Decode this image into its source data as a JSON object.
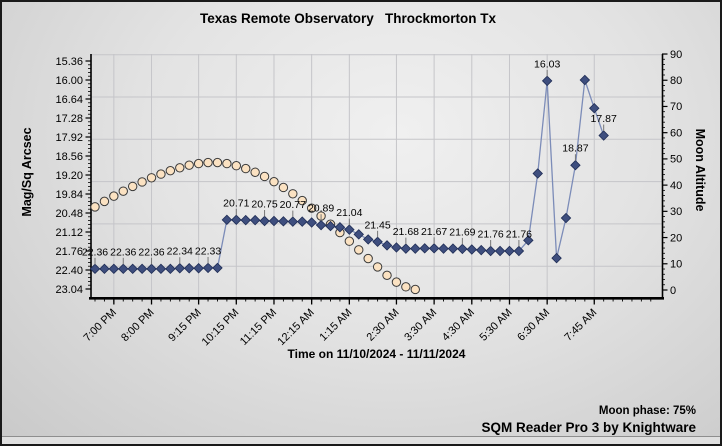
{
  "footer": {
    "moon_phase_label": "Moon phase: 75%",
    "app_credit": "SQM Reader Pro 3 by Knightware"
  },
  "chart_data": {
    "type": "line",
    "title": "Texas Remote Observatory   Throckmorton Tx",
    "x_axis": {
      "label": "Time on 11/10/2024 - 11/11/2024",
      "tick_labels": [
        "7:00 PM",
        "8:00 PM",
        "9:15 PM",
        "10:15 PM",
        "11:15 PM",
        "12:15 AM",
        "1:15 AM",
        "2:30 AM",
        "3:30 AM",
        "4:30 AM",
        "5:30 AM",
        "6:30 AM",
        "7:45 AM"
      ],
      "tick_indices": [
        2,
        6,
        11,
        15,
        19,
        23,
        27,
        32,
        36,
        40,
        44,
        48,
        53
      ]
    },
    "y_axis_left": {
      "label": "Mag/Sq Arcsec",
      "inverted": true,
      "range": [
        15.36,
        23.04
      ],
      "tick_labels": [
        "15.36",
        "16.00",
        "16.64",
        "17.28",
        "17.92",
        "18.56",
        "19.20",
        "19.84",
        "20.48",
        "21.12",
        "21.76",
        "22.40",
        "23.04"
      ]
    },
    "y_axis_right": {
      "label": "Moon Altitude",
      "range": [
        0,
        90
      ],
      "tick_labels": [
        "90",
        "80",
        "70",
        "60",
        "50",
        "40",
        "30",
        "20",
        "10",
        "0"
      ]
    },
    "series": [
      {
        "name": "SQM reading (Mag/Sq Arcsec)",
        "axis": "left",
        "marker": "diamond",
        "marker_color": "#3e4e7e",
        "marker_outline": "#1f2d55",
        "line_color": "#7c8cb8",
        "values": [
          22.36,
          22.36,
          22.36,
          22.36,
          22.36,
          22.36,
          22.36,
          22.36,
          22.36,
          22.34,
          22.34,
          22.34,
          22.33,
          22.33,
          20.71,
          20.71,
          20.72,
          20.72,
          20.75,
          20.75,
          20.76,
          20.77,
          20.77,
          20.8,
          20.89,
          20.92,
          20.96,
          21.04,
          21.2,
          21.37,
          21.45,
          21.57,
          21.64,
          21.68,
          21.68,
          21.67,
          21.67,
          21.68,
          21.68,
          21.69,
          21.71,
          21.73,
          21.76,
          21.76,
          21.76,
          21.76,
          21.4,
          19.15,
          16.03,
          22.0,
          20.65,
          18.87,
          16.0,
          16.95,
          17.87
        ]
      },
      {
        "name": "Moon altitude (degrees)",
        "axis": "right",
        "marker": "circle",
        "marker_color": "#fbe2c2",
        "marker_outline": "#3a3a3a",
        "line_color": "none",
        "values": [
          31.7,
          33.8,
          35.8,
          37.7,
          39.5,
          41.2,
          42.8,
          44.2,
          45.5,
          46.6,
          47.6,
          48.2,
          48.6,
          48.6,
          48.2,
          47.4,
          46.3,
          44.9,
          43.3,
          41.3,
          39.1,
          36.7,
          34.1,
          31.2,
          28.2,
          25.1,
          21.9,
          18.6,
          15.3,
          12.0,
          8.8,
          5.6,
          3.0,
          1.2,
          0.2
        ]
      }
    ],
    "point_labels": [
      {
        "index": 0,
        "text": "22.36"
      },
      {
        "index": 3,
        "text": "22.36"
      },
      {
        "index": 6,
        "text": "22.36"
      },
      {
        "index": 9,
        "text": "22.34"
      },
      {
        "index": 12,
        "text": "22.33"
      },
      {
        "index": 15,
        "text": "20.71"
      },
      {
        "index": 18,
        "text": "20.75"
      },
      {
        "index": 21,
        "text": "20.77"
      },
      {
        "index": 24,
        "text": "20.89"
      },
      {
        "index": 27,
        "text": "21.04"
      },
      {
        "index": 30,
        "text": "21.45"
      },
      {
        "index": 33,
        "text": "21.68"
      },
      {
        "index": 36,
        "text": "21.67"
      },
      {
        "index": 39,
        "text": "21.69"
      },
      {
        "index": 42,
        "text": "21.76"
      },
      {
        "index": 45,
        "text": "21.76"
      },
      {
        "index": 48,
        "text": "16.03"
      },
      {
        "index": 51,
        "text": "18.87"
      },
      {
        "index": 54,
        "text": "17.87"
      }
    ],
    "moon_phase": "75%",
    "legend": "none",
    "grid": true
  }
}
